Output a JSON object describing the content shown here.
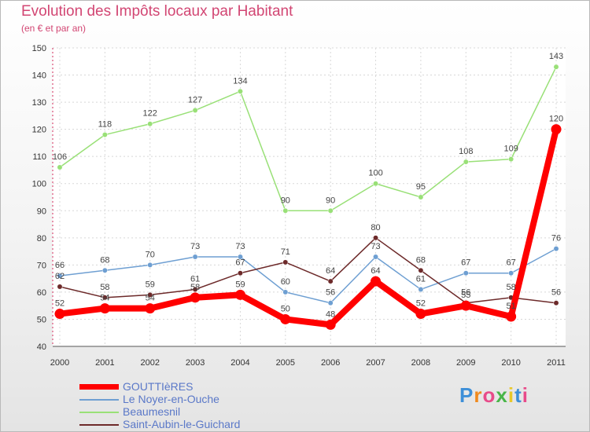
{
  "chart_data": {
    "type": "line",
    "title": "Evolution des Impôts locaux par Habitant",
    "subtitle": "(en € et par an)",
    "x": [
      "2000",
      "2001",
      "2002",
      "2003",
      "2004",
      "2005",
      "2006",
      "2007",
      "2008",
      "2009",
      "2010",
      "2011"
    ],
    "ylim": [
      40,
      150
    ],
    "yticks": [
      40,
      50,
      60,
      70,
      80,
      90,
      100,
      110,
      120,
      130,
      140,
      150
    ],
    "grid": true,
    "legend_position": "bottom-left",
    "series": [
      {
        "name": "GOUTTIèRES",
        "color": "#ff0000",
        "values": [
          52,
          54,
          54,
          58,
          59,
          50,
          48,
          64,
          52,
          55,
          51,
          120
        ]
      },
      {
        "name": "Le Noyer-en-Ouche",
        "color": "#6e9fd2",
        "values": [
          66,
          68,
          70,
          73,
          73,
          60,
          56,
          73,
          61,
          67,
          67,
          76
        ]
      },
      {
        "name": "Beaumesnil",
        "color": "#99e077",
        "values": [
          106,
          118,
          122,
          127,
          134,
          90,
          90,
          100,
          95,
          108,
          109,
          143
        ]
      },
      {
        "name": "Saint-Aubin-le-Guichard",
        "color": "#6d2a2a",
        "values": [
          62,
          58,
          59,
          61,
          67,
          71,
          64,
          80,
          68,
          56,
          58,
          56
        ]
      }
    ]
  },
  "legend": {
    "items": [
      {
        "label": "GOUTTIèRES"
      },
      {
        "label": "Le Noyer-en-Ouche"
      },
      {
        "label": "Beaumesnil"
      },
      {
        "label": "Saint-Aubin-le-Guichard"
      }
    ]
  },
  "logo": {
    "text": "Proxiti"
  }
}
